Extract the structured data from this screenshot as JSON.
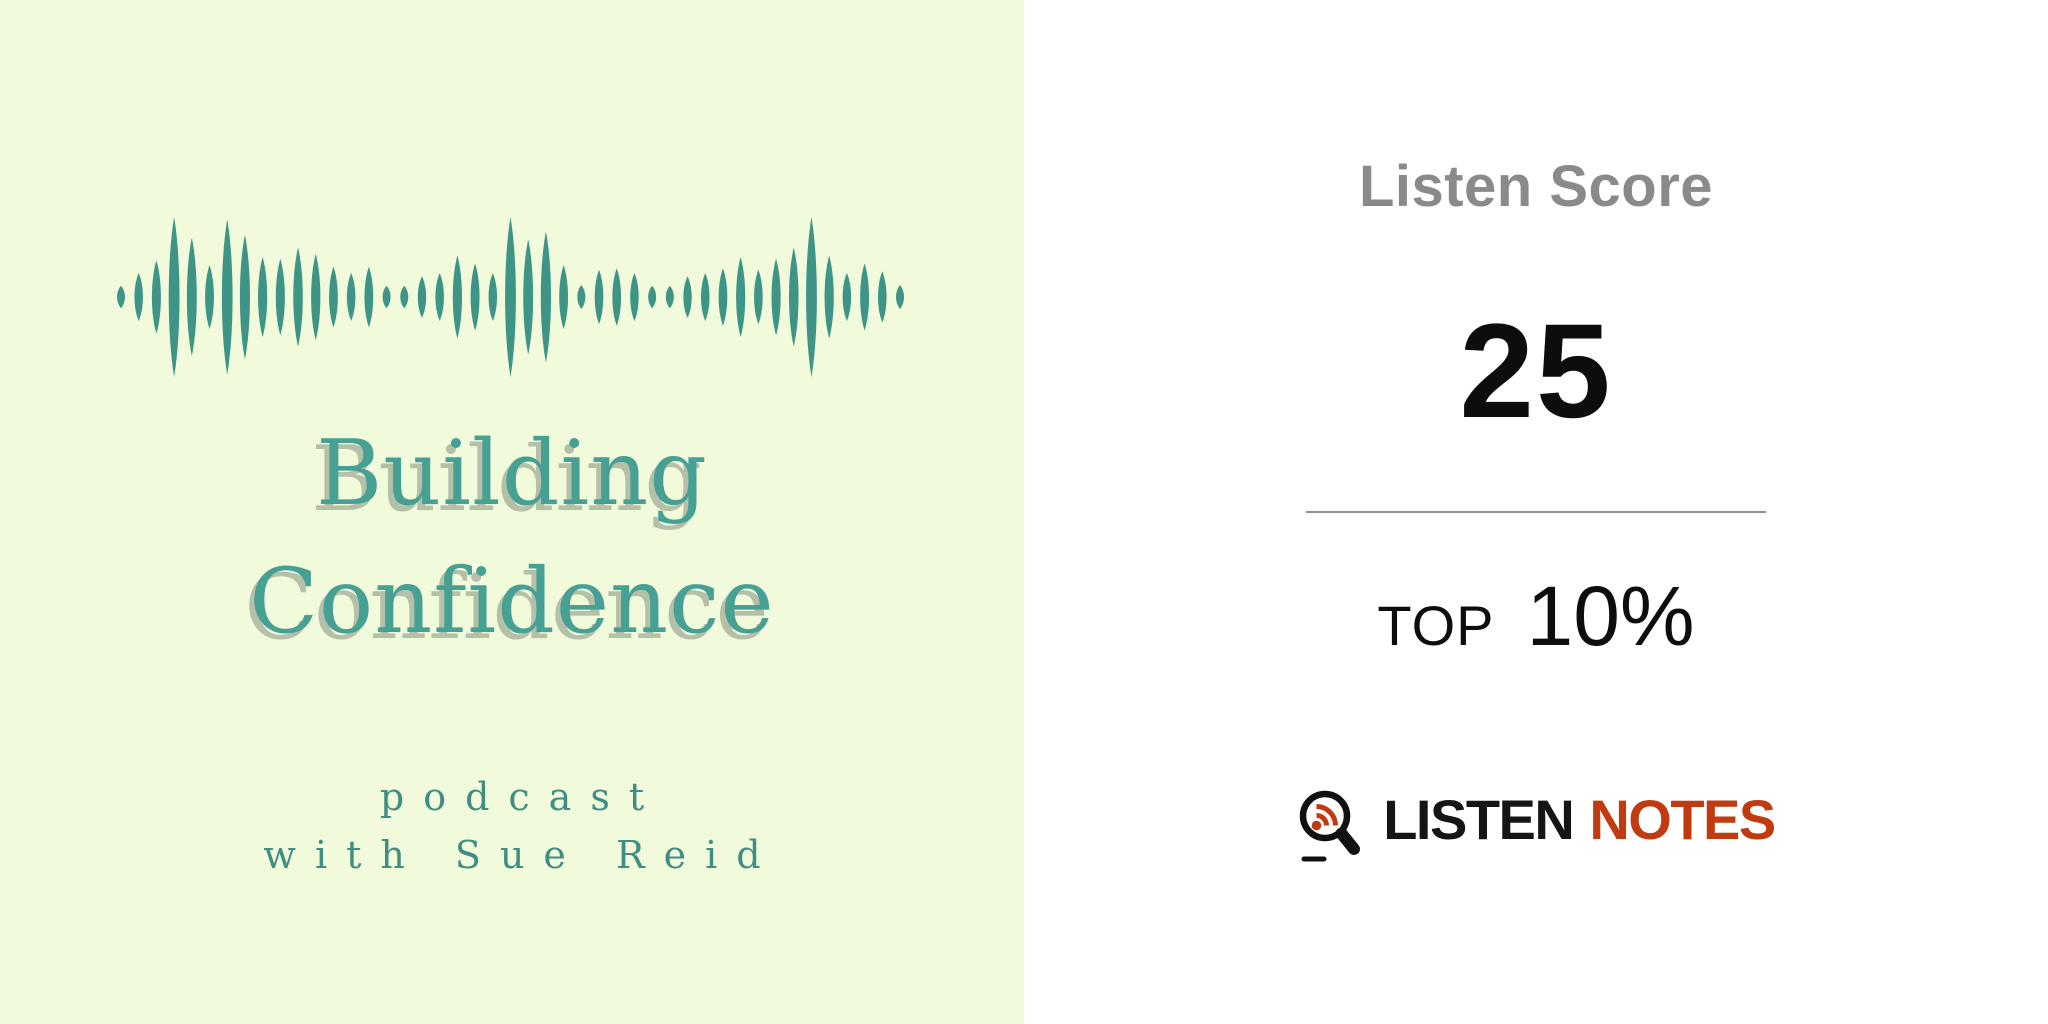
{
  "cover": {
    "title": {
      "line1": "Building",
      "line2": "Confidence"
    },
    "subtitle": {
      "line1": "podcast",
      "line2": "with Sue Reid"
    },
    "waveform": {
      "heights": [
        0.14,
        0.3,
        0.46,
        1.0,
        0.74,
        0.4,
        0.97,
        0.78,
        0.5,
        0.48,
        0.62,
        0.54,
        0.38,
        0.3,
        0.38,
        0.14,
        0.14,
        0.26,
        0.3,
        0.52,
        0.42,
        0.3,
        1.0,
        0.72,
        0.82,
        0.4,
        0.15,
        0.34,
        0.36,
        0.3,
        0.14,
        0.14,
        0.26,
        0.3,
        0.36,
        0.5,
        0.34,
        0.48,
        0.62,
        1.0,
        0.52,
        0.3,
        0.42,
        0.32,
        0.15
      ]
    },
    "colors": {
      "background": "#F1FADB",
      "wave": "#3F9488",
      "title": "#47A094",
      "title_shadow": "#B5C0A9",
      "subtitle": "#3F8D83"
    }
  },
  "score_panel": {
    "heading": "Listen Score",
    "score": "25",
    "top_label": "TOP",
    "top_value": "10%",
    "brand": {
      "listen": "LISTEN",
      "notes": "NOTES"
    },
    "icon": "magnifier-rss-icon",
    "colors": {
      "heading_gray": "#8A8A8A",
      "score_black": "#0D0D0D",
      "divider_gray": "#8F8F8F",
      "listen_black": "#151515",
      "notes_rust": "#C13B10"
    }
  }
}
